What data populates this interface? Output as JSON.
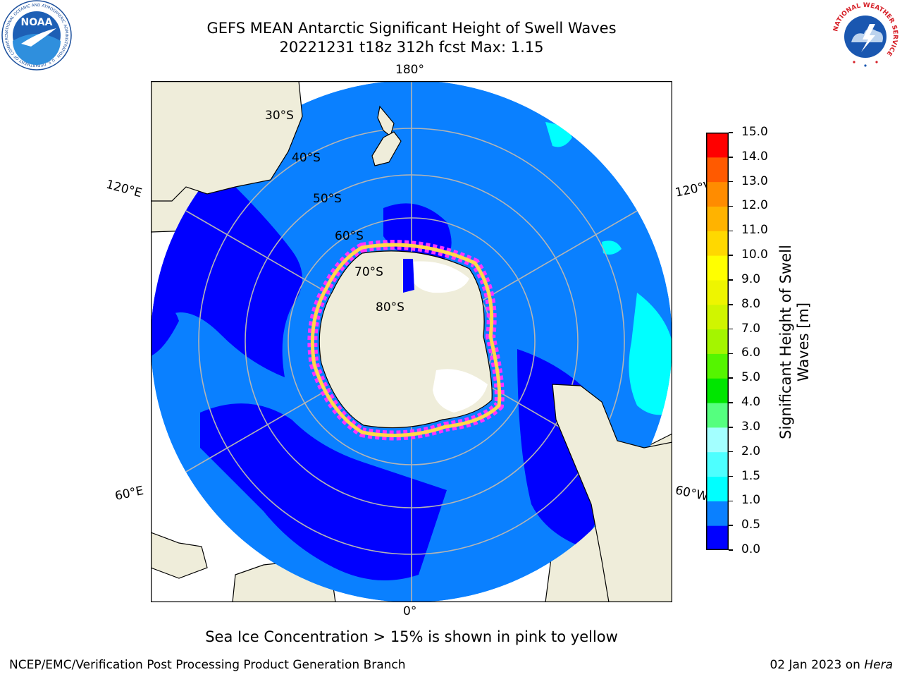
{
  "header": {
    "title_line1": "GEFS MEAN Antarctic Significant Height of Swell Waves",
    "title_line2": "20221231 t18z 312h fcst   Max: 1.15"
  },
  "logos": {
    "noaa": "NOAA",
    "noaa_ring": "NATIONAL OCEANIC AND ATMOSPHERIC ADMINISTRATION · U.S. DEPARTMENT OF COMMERCE",
    "nws_ring": "NATIONAL WEATHER SERVICE"
  },
  "map": {
    "projection": "south-polar-stereographic",
    "lon_labels": {
      "top": "180°",
      "bottom": "0°",
      "upper_left": "120°E",
      "upper_right": "120°W",
      "lower_left": "60°E",
      "lower_right": "60°W"
    },
    "lat_labels": [
      "30°S",
      "40°S",
      "50°S",
      "60°S",
      "70°S",
      "80°S"
    ],
    "colors": {
      "ocean_primary": "#0a80ff",
      "ocean_low": "#0000ff",
      "ocean_high": "#00ffff",
      "land": "#efedda",
      "grid": "#b4b4b4",
      "ice_edge_pink": "#ff33ff",
      "ice_edge_yellow": "#ffd84a"
    }
  },
  "colorbar": {
    "label_line1": "Significant Height of Swell",
    "label_line2": "Waves [m]",
    "ticks": [
      "0.0",
      "0.5",
      "1.0",
      "1.5",
      "2.0",
      "3.0",
      "4.0",
      "5.0",
      "6.0",
      "7.0",
      "8.0",
      "9.0",
      "10.0",
      "11.0",
      "12.0",
      "13.0",
      "14.0",
      "15.0"
    ],
    "colors": [
      "#0000ff",
      "#0a80ff",
      "#00ffff",
      "#4dffff",
      "#a3ffff",
      "#55ff7f",
      "#00e600",
      "#55f500",
      "#a4f500",
      "#d0f500",
      "#eef500",
      "#ffff00",
      "#ffd800",
      "#ffb300",
      "#ff8c00",
      "#ff5a00",
      "#ff0000"
    ]
  },
  "footer": {
    "note": "Sea Ice Concentration > 15% is shown in pink to yellow",
    "credit": "NCEP/EMC/Verification Post Processing Product Generation Branch",
    "date": "02 Jan 2023 on",
    "machine": "Hera"
  }
}
